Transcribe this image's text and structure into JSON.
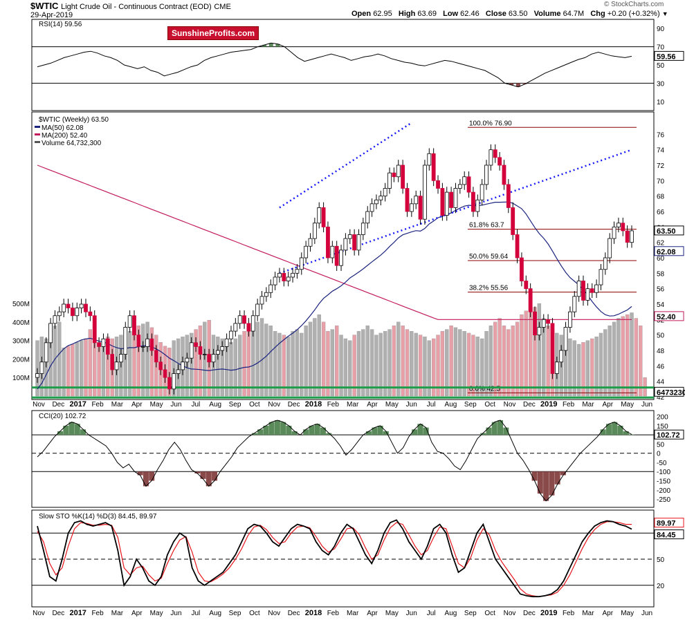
{
  "header": {
    "symbol": "$WTIC",
    "name": "Light Crude Oil - Continuous Contract (EOD)",
    "exchange": "CME",
    "date": "29-Apr-2019",
    "open_label": "Open",
    "open": "62.95",
    "high_label": "High",
    "high": "63.69",
    "low_label": "Low",
    "low": "62.46",
    "close_label": "Close",
    "close": "63.50",
    "volume_label": "Volume",
    "volume": "64.7M",
    "chg_label": "Chg",
    "chg": "+0.20 (+0.32%)",
    "copyright": "© StockCharts.com",
    "logo": "SunshineProfits.com"
  },
  "colors": {
    "up_candle": "#ffffff",
    "down_candle": "#d4003c",
    "ma50": "#1a237e",
    "ma200": "#c2185b",
    "trend_channel": "#1a1aff",
    "fib_lines": "#8b0000",
    "support_band": "#1e9e4a",
    "rsi_fill": "#5a8a5a",
    "cci_pos_fill": "#5a8a5a",
    "cci_neg_fill": "#8b4a4a",
    "volume_up": "#b0b0b0",
    "volume_down": "#e8a0a8",
    "sto_k": "#000000",
    "sto_d": "#e8151b"
  },
  "x_axis": {
    "labels": [
      "Nov",
      "Dec",
      "2017",
      "Feb",
      "Mar",
      "Apr",
      "May",
      "Jun",
      "Jul",
      "Aug",
      "Sep",
      "Oct",
      "Nov",
      "Dec",
      "2018",
      "Feb",
      "Mar",
      "Apr",
      "May",
      "Jun",
      "Jul",
      "Aug",
      "Sep",
      "Oct",
      "Nov",
      "Dec",
      "2019",
      "Feb",
      "Mar",
      "Apr",
      "May",
      "Jun"
    ]
  },
  "chart_data": [
    {
      "type": "line",
      "panel": "rsi",
      "title": "RSI(14) 59.56",
      "last_value": "59.56",
      "y_ticks": [
        "90",
        "70",
        "50",
        "30",
        "10"
      ],
      "ylim": [
        0,
        100
      ],
      "reference_lines": [
        70,
        30
      ],
      "series": [
        {
          "name": "RSI(14)",
          "values": [
            48,
            50,
            52,
            55,
            58,
            60,
            62,
            64,
            65,
            63,
            60,
            58,
            55,
            50,
            48,
            46,
            48,
            44,
            42,
            38,
            40,
            42,
            45,
            48,
            50,
            55,
            58,
            60,
            62,
            64,
            65,
            66,
            67,
            70,
            72,
            74,
            73,
            70,
            64,
            58,
            54,
            56,
            58,
            60,
            62,
            60,
            58,
            55,
            57,
            59,
            60,
            62,
            60,
            57,
            55,
            53,
            52,
            50,
            49,
            51,
            53,
            55,
            54,
            52,
            50,
            48,
            46,
            44,
            40,
            36,
            30,
            28,
            26,
            29,
            33,
            37,
            41,
            44,
            47,
            50,
            53,
            56,
            58,
            62,
            64,
            62,
            60,
            59,
            58,
            59.56
          ]
        }
      ]
    },
    {
      "type": "candlestick",
      "panel": "price",
      "title": "$WTIC (Weekly) 63.50",
      "legend": [
        "MA(50) 62.08",
        "MA(200) 52.40",
        "Volume 64,732,300"
      ],
      "y_ticks": [
        "76",
        "74",
        "72",
        "70",
        "68",
        "66",
        "64",
        "62",
        "60",
        "58",
        "56",
        "54",
        "52",
        "50",
        "48",
        "46",
        "44",
        "42"
      ],
      "ylim": [
        42,
        78
      ],
      "last_price": "63.50",
      "ma50_value": "62.08",
      "ma200_value": "52.40",
      "fib_levels": [
        {
          "label": "100.0% 76.90",
          "value": 76.9
        },
        {
          "label": "61.8% 63.7",
          "value": 63.7
        },
        {
          "label": "50.0% 59.64",
          "value": 59.64
        },
        {
          "label": "38.2% 55.56",
          "value": 55.56
        },
        {
          "label": "0.0% 42.5",
          "value": 42.5
        }
      ],
      "volume_ticks": [
        "500M",
        "400M",
        "300M",
        "200M",
        "100M"
      ],
      "volume_last": "64732300",
      "closes": [
        45,
        46.5,
        49,
        51.5,
        52.5,
        53,
        54,
        53.5,
        52.5,
        53.5,
        54,
        53,
        52.5,
        49,
        48.5,
        49.5,
        47.5,
        45.5,
        46.5,
        47.5,
        51,
        52.5,
        50,
        48.5,
        48.5,
        49.5,
        48,
        46.5,
        45.5,
        44.5,
        43,
        45,
        45.5,
        46.5,
        47,
        49,
        48.5,
        47.5,
        47.5,
        46.5,
        47.5,
        48,
        48.5,
        49.5,
        50.5,
        51.5,
        52.5,
        51.5,
        50.5,
        52.5,
        54,
        55,
        55.5,
        56.5,
        57.5,
        58,
        57,
        57.5,
        58,
        58.5,
        60,
        61.5,
        62.5,
        64.5,
        66.5,
        64,
        60,
        61.5,
        59,
        61,
        62.5,
        63,
        61,
        63,
        64.5,
        66,
        67,
        67.5,
        68,
        69,
        71,
        70.5,
        72,
        69,
        66,
        67,
        68,
        65,
        72,
        73.5,
        70,
        69,
        65.5,
        68.5,
        66.5,
        69,
        69.5,
        70.5,
        68.5,
        66,
        67.5,
        69.5,
        72,
        74,
        73,
        72,
        69.5,
        66.5,
        63,
        60,
        57,
        56,
        53,
        50,
        51,
        52,
        51.5,
        45,
        46.5,
        48,
        51,
        53,
        55,
        57,
        54.5,
        56,
        55.5,
        56.5,
        58.5,
        60,
        62.5,
        64,
        64.5,
        63.5,
        62,
        63.5
      ],
      "volumes": [
        300,
        320,
        310,
        330,
        380,
        400,
        260,
        270,
        280,
        290,
        300,
        310,
        360,
        370,
        290,
        300,
        320,
        310,
        320,
        330,
        340,
        350,
        360,
        380,
        390,
        400,
        370,
        330,
        290,
        270,
        260,
        300,
        310,
        320,
        330,
        340,
        360,
        380,
        400,
        410,
        330,
        320,
        310,
        300,
        290,
        310,
        330,
        350,
        370,
        380,
        400,
        420,
        390,
        380,
        350,
        340,
        330,
        320,
        350,
        360,
        340,
        380,
        400,
        420,
        440,
        400,
        350,
        360,
        380,
        330,
        310,
        300,
        330,
        350,
        360,
        380,
        360,
        330,
        340,
        350,
        360,
        380,
        400,
        380,
        360,
        350,
        340,
        330,
        320,
        300,
        310,
        330,
        350,
        360,
        380,
        370,
        360,
        350,
        340,
        330,
        320,
        310,
        350,
        380,
        400,
        420,
        380,
        360,
        380,
        400,
        440,
        460,
        470,
        480,
        500,
        420,
        380,
        360,
        340,
        330,
        320,
        310,
        300,
        280,
        290,
        300,
        310,
        320,
        340,
        360,
        380,
        400,
        420,
        430,
        440,
        450,
        420,
        380,
        100
      ]
    },
    {
      "type": "line",
      "panel": "cci",
      "title": "CCI(20) 102.72",
      "last_value": "102.72",
      "y_ticks": [
        "200",
        "150",
        "100",
        "50",
        "0",
        "-50",
        "-100",
        "-150",
        "-200",
        "-250"
      ],
      "ylim": [
        -280,
        210
      ],
      "reference_lines": [
        100,
        0,
        -100
      ],
      "series": [
        {
          "name": "CCI(20)",
          "values": [
            -20,
            10,
            50,
            90,
            120,
            150,
            170,
            160,
            130,
            100,
            80,
            60,
            40,
            0,
            -50,
            -80,
            -60,
            -100,
            -120,
            -180,
            -150,
            -90,
            -40,
            20,
            60,
            20,
            -40,
            -90,
            -110,
            -140,
            -180,
            -150,
            -100,
            -60,
            -20,
            30,
            60,
            90,
            110,
            130,
            150,
            170,
            180,
            170,
            150,
            120,
            100,
            130,
            150,
            160,
            140,
            110,
            80,
            40,
            -10,
            20,
            60,
            100,
            120,
            140,
            150,
            120,
            60,
            0,
            30,
            90,
            130,
            160,
            140,
            60,
            10,
            0,
            -30,
            -70,
            -90,
            -40,
            20,
            80,
            110,
            140,
            170,
            180,
            140,
            70,
            0,
            -40,
            -90,
            -150,
            -220,
            -260,
            -230,
            -170,
            -120,
            -80,
            -40,
            0,
            30,
            60,
            90,
            130,
            160,
            170,
            150,
            120,
            102.72
          ]
        }
      ]
    },
    {
      "type": "line",
      "panel": "stochastic",
      "title": "Slow STO %K(14) %D(3) 84.45, 89.97",
      "last_values": [
        "89.97",
        "84.45"
      ],
      "y_ticks": [
        "80",
        "50",
        "20"
      ],
      "ylim": [
        0,
        100
      ],
      "reference_lines": [
        80,
        50,
        20
      ],
      "series": [
        {
          "name": "%K(14)",
          "values": [
            88,
            60,
            30,
            25,
            50,
            80,
            92,
            94,
            90,
            88,
            90,
            92,
            88,
            60,
            20,
            30,
            50,
            40,
            25,
            20,
            30,
            55,
            70,
            80,
            75,
            40,
            25,
            20,
            25,
            30,
            35,
            45,
            55,
            70,
            85,
            90,
            88,
            80,
            70,
            65,
            75,
            85,
            90,
            88,
            85,
            70,
            60,
            55,
            65,
            80,
            90,
            85,
            70,
            55,
            45,
            60,
            80,
            92,
            95,
            85,
            70,
            60,
            50,
            65,
            85,
            90,
            80,
            55,
            35,
            40,
            60,
            80,
            90,
            70,
            50,
            40,
            30,
            20,
            10,
            8,
            7,
            7,
            8,
            10,
            15,
            25,
            40,
            55,
            70,
            80,
            88,
            92,
            94,
            93,
            90,
            88,
            84.45
          ]
        },
        {
          "name": "%D(3)",
          "values": [
            82,
            70,
            45,
            32,
            40,
            65,
            85,
            92,
            91,
            89,
            89,
            90,
            89,
            75,
            40,
            32,
            40,
            42,
            32,
            25,
            28,
            45,
            60,
            72,
            76,
            58,
            35,
            25,
            24,
            28,
            33,
            40,
            50,
            62,
            77,
            87,
            89,
            84,
            75,
            68,
            70,
            80,
            87,
            88,
            86,
            76,
            65,
            58,
            62,
            73,
            85,
            86,
            78,
            63,
            50,
            55,
            72,
            86,
            92,
            90,
            78,
            65,
            55,
            60,
            75,
            87,
            85,
            65,
            45,
            40,
            52,
            72,
            85,
            78,
            60,
            47,
            37,
            27,
            16,
            10,
            8,
            7,
            8,
            9,
            12,
            20,
            32,
            47,
            62,
            75,
            84,
            90,
            93,
            93,
            92,
            90,
            89.97
          ]
        }
      ]
    }
  ]
}
